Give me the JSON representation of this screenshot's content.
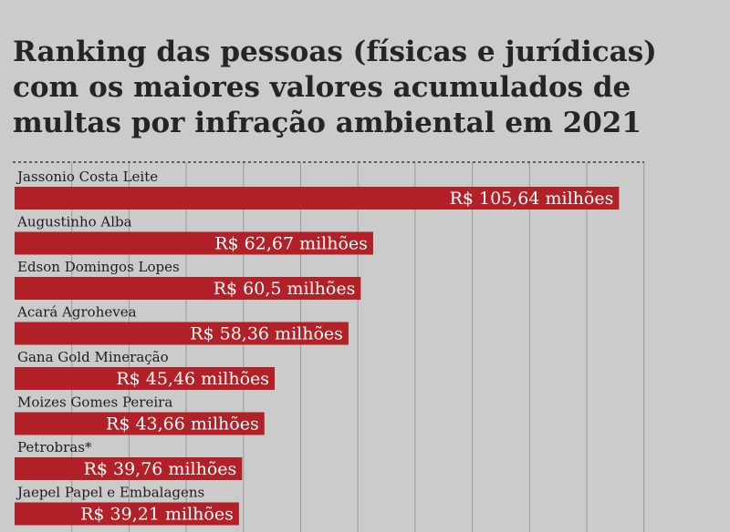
{
  "title_lines": [
    "Ranking das pessoas (físicas e jurídicas)",
    "com os maiores valores acumulados de",
    "multas por infração ambiental em 2021"
  ],
  "colors": {
    "bar": "#b22127",
    "grid": "#9a9a9a",
    "background": "#cbcbcb"
  },
  "chart_data": {
    "type": "bar",
    "orientation": "horizontal",
    "title": "Ranking das pessoas (físicas e jurídicas) com os maiores valores acumulados de multas por infração ambiental em 2021",
    "categories": [
      "Jassonio Costa Leite",
      "Augustinho Alba",
      "Edson Domingos Lopes",
      "Acará Agrohevea",
      "Gana Gold Mineração",
      "Moizes Gomes Pereira",
      "Petrobras*",
      "Jaepel Papel e Embalagens"
    ],
    "values": [
      105.64,
      62.67,
      60.5,
      58.36,
      45.46,
      43.66,
      39.76,
      39.21
    ],
    "value_labels": [
      "R$ 105,64 milhões",
      "R$ 62,67 milhões",
      "R$ 60,5 milhões",
      "R$ 58,36 milhões",
      "R$ 45,46 milhões",
      "R$ 43,66 milhões",
      "R$ 39,76 milhões",
      "R$ 39,21 milhões"
    ],
    "unit": "R$ milhões",
    "xlim": [
      0,
      110
    ],
    "grid": true,
    "grid_step": 10,
    "xlabel": "",
    "ylabel": ""
  }
}
